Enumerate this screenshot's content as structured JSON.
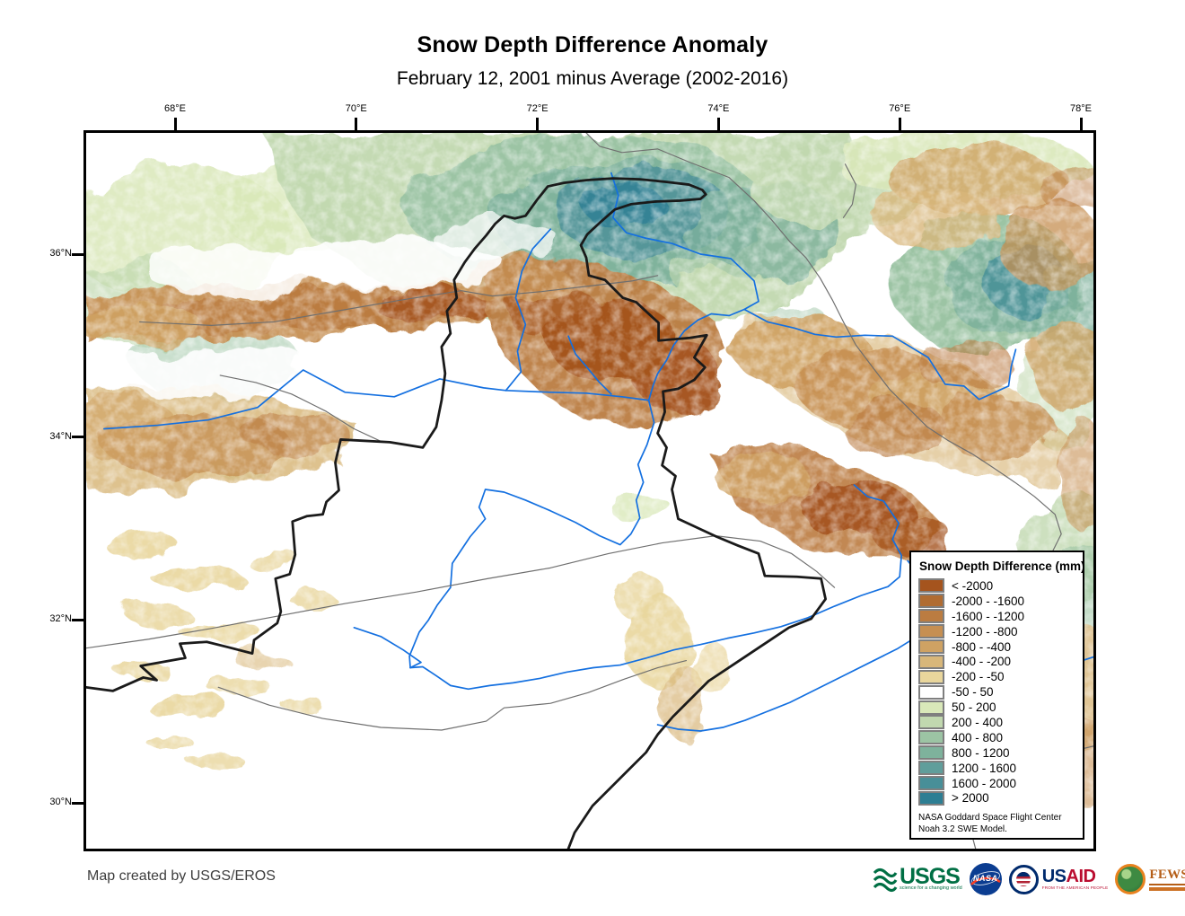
{
  "title": "Snow Depth Difference Anomaly",
  "subtitle": "February 12, 2001 minus Average (2002-2016)",
  "map": {
    "x_ticks": [
      "68°E",
      "70°E",
      "72°E",
      "74°E",
      "76°E",
      "78°E"
    ],
    "y_ticks": [
      "36°N",
      "34°N",
      "32°N",
      "30°N"
    ],
    "colors": {
      "river": "#1470e0",
      "country_border": "#1a1a1a",
      "basin_boundary": "#6f6f6f",
      "background": "#ffffff"
    }
  },
  "legend": {
    "title": "Snow Depth Difference (mm)",
    "entries": [
      {
        "label": "< -2000",
        "color": "#a5541e"
      },
      {
        "label": "-2000 - -1600",
        "color": "#b06c32"
      },
      {
        "label": "-1600 - -1200",
        "color": "#bb7c41"
      },
      {
        "label": "-1200 - -800",
        "color": "#c68f52"
      },
      {
        "label": "-800 - -400",
        "color": "#cfa263"
      },
      {
        "label": "-400 - -200",
        "color": "#d8b77a"
      },
      {
        "label": "-200 - -50",
        "color": "#e9d69c"
      },
      {
        "label": "-50 - 50",
        "color": "#ffffff"
      },
      {
        "label": "50 - 200",
        "color": "#d9e8b9"
      },
      {
        "label": "200 - 400",
        "color": "#c1d8af"
      },
      {
        "label": "400 - 800",
        "color": "#9cc4a4"
      },
      {
        "label": "800 - 1200",
        "color": "#7eb29c"
      },
      {
        "label": "1200 - 1600",
        "color": "#609e9b"
      },
      {
        "label": "1600 - 2000",
        "color": "#488f98"
      },
      {
        "label": "> 2000",
        "color": "#2d7e93"
      }
    ],
    "source_line1": "NASA Goddard Space Flight Center",
    "source_line2": "Noah 3.2 SWE Model."
  },
  "footer": {
    "credit": "Map created by USGS/EROS",
    "logos": {
      "usgs": {
        "text": "USGS",
        "tagline": "science for a changing world"
      },
      "nasa": {
        "text": "NASA"
      },
      "usaid": {
        "text_us": "US",
        "text_aid": "AID",
        "tagline": "FROM THE AMERICAN PEOPLE"
      },
      "fewsnet": {
        "text": "FEWS NET"
      }
    }
  }
}
